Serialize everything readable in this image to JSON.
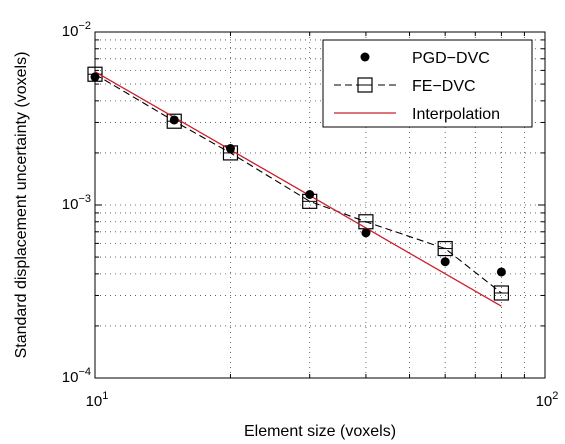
{
  "chart_data": {
    "type": "line",
    "xscale": "log",
    "yscale": "log",
    "xlim": [
      10,
      100
    ],
    "ylim": [
      0.0001,
      0.01
    ],
    "xlabel": "Element size (voxels)",
    "ylabel": "Standard displacement uncertainty (voxels)",
    "grid": true,
    "legend_position": "top-right",
    "x_ticks": [
      {
        "value": 10,
        "base": "10",
        "exp": "1"
      },
      {
        "value": 100,
        "base": "10",
        "exp": "2"
      }
    ],
    "y_ticks": [
      {
        "value": 0.0001,
        "base": "10",
        "exp": "−4"
      },
      {
        "value": 0.001,
        "base": "10",
        "exp": "−3"
      },
      {
        "value": 0.01,
        "base": "10",
        "exp": "−2"
      }
    ],
    "series": [
      {
        "name": "PGD−DVC",
        "style": "markers",
        "marker": "filled-circle",
        "color": "#000000",
        "x": [
          10,
          15,
          20,
          30,
          40,
          60,
          80
        ],
        "y": [
          0.0055,
          0.0031,
          0.00212,
          0.00115,
          0.00069,
          0.00047,
          0.00041
        ]
      },
      {
        "name": "FE−DVC",
        "style": "dashed-line-markers",
        "marker": "open-square",
        "color": "#000000",
        "x": [
          10,
          15,
          20,
          30,
          40,
          60,
          80
        ],
        "y": [
          0.0057,
          0.00305,
          0.002,
          0.00105,
          0.0008,
          0.00056,
          0.00031
        ]
      },
      {
        "name": "Interpolation",
        "style": "solid-line",
        "color": "#cc1f2c",
        "x": [
          10,
          80
        ],
        "y": [
          0.0059,
          0.00026
        ]
      }
    ]
  }
}
